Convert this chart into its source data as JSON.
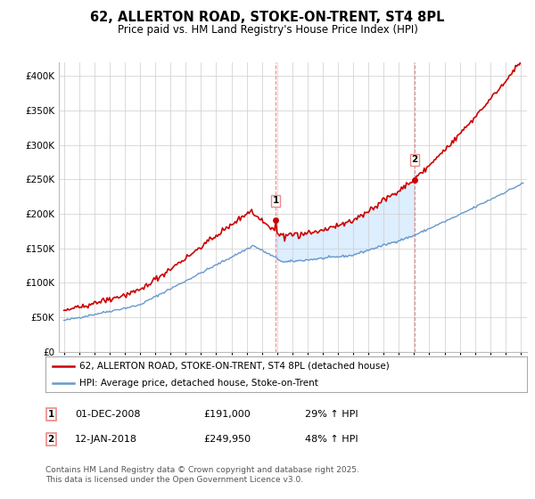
{
  "title": "62, ALLERTON ROAD, STOKE-ON-TRENT, ST4 8PL",
  "subtitle": "Price paid vs. HM Land Registry's House Price Index (HPI)",
  "ylim": [
    0,
    420000
  ],
  "yticks": [
    0,
    50000,
    100000,
    150000,
    200000,
    250000,
    300000,
    350000,
    400000
  ],
  "sale1_price": 191000,
  "sale2_price": 249950,
  "line1_color": "#cc0000",
  "line2_color": "#6699cc",
  "shading_color": "#ddeeff",
  "vline_color": "#ee8888",
  "background_color": "#ffffff",
  "grid_color": "#cccccc",
  "legend1": "62, ALLERTON ROAD, STOKE-ON-TRENT, ST4 8PL (detached house)",
  "legend2": "HPI: Average price, detached house, Stoke-on-Trent",
  "footer": "Contains HM Land Registry data © Crown copyright and database right 2025.\nThis data is licensed under the Open Government Licence v3.0.",
  "title_fontsize": 10.5,
  "subtitle_fontsize": 8.5,
  "tick_fontsize": 7.5,
  "legend_fontsize": 7.5,
  "footer_fontsize": 6.5
}
